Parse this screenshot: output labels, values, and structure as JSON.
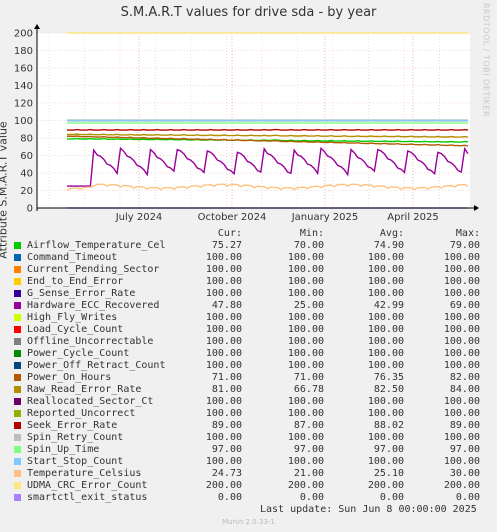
{
  "title": "S.M.A.R.T values for drive sda - by year",
  "ylabel": "Attribute S.M.A.R.T value",
  "watermark": "RRDTOOL / TOBI OETIKER",
  "legend_headers": {
    "cur": "Cur:",
    "min": "Min:",
    "avg": "Avg:",
    "max": "Max:"
  },
  "last_update": "Last update:  Sun Jun  8 00:00:00 2025",
  "footer": "Munin 2.0.33-1",
  "chart_data": {
    "type": "line",
    "title": "S.M.A.R.T values for drive sda - by year",
    "ylabel": "Attribute S.M.A.R.T value",
    "xlabel": "",
    "ylim": [
      0,
      200
    ],
    "yticks": [
      0,
      20,
      40,
      60,
      80,
      100,
      120,
      140,
      160,
      180,
      200
    ],
    "xticks": [
      "July 2024",
      "October 2024",
      "January 2025",
      "April 2025"
    ],
    "grid": true,
    "series": [
      {
        "name": "Airflow_Temperature_Cel",
        "color": "#00cc00",
        "cur": "75.27",
        "min": "70.00",
        "avg": "74.90",
        "max": "79.00"
      },
      {
        "name": "Command_Timeout",
        "color": "#0066b3",
        "cur": "100.00",
        "min": "100.00",
        "avg": "100.00",
        "max": "100.00"
      },
      {
        "name": "Current_Pending_Sector",
        "color": "#ff8000",
        "cur": "100.00",
        "min": "100.00",
        "avg": "100.00",
        "max": "100.00"
      },
      {
        "name": "End_to_End_Error",
        "color": "#ffcc00",
        "cur": "100.00",
        "min": "100.00",
        "avg": "100.00",
        "max": "100.00"
      },
      {
        "name": "G_Sense_Error_Rate",
        "color": "#330099",
        "cur": "100.00",
        "min": "100.00",
        "avg": "100.00",
        "max": "100.00"
      },
      {
        "name": "Hardware_ECC_Recovered",
        "color": "#990099",
        "cur": "47.80",
        "min": "25.00",
        "avg": "42.99",
        "max": "69.00"
      },
      {
        "name": "High_Fly_Writes",
        "color": "#ccff00",
        "cur": "100.00",
        "min": "100.00",
        "avg": "100.00",
        "max": "100.00"
      },
      {
        "name": "Load_Cycle_Count",
        "color": "#ff0000",
        "cur": "100.00",
        "min": "100.00",
        "avg": "100.00",
        "max": "100.00"
      },
      {
        "name": "Offline_Uncorrectable",
        "color": "#808080",
        "cur": "100.00",
        "min": "100.00",
        "avg": "100.00",
        "max": "100.00"
      },
      {
        "name": "Power_Cycle_Count",
        "color": "#008f00",
        "cur": "100.00",
        "min": "100.00",
        "avg": "100.00",
        "max": "100.00"
      },
      {
        "name": "Power_Off_Retract_Count",
        "color": "#00487d",
        "cur": "100.00",
        "min": "100.00",
        "avg": "100.00",
        "max": "100.00"
      },
      {
        "name": "Power_On_Hours",
        "color": "#b35a00",
        "cur": "71.00",
        "min": "71.00",
        "avg": "76.35",
        "max": "82.00"
      },
      {
        "name": "Raw_Read_Error_Rate",
        "color": "#b38f00",
        "cur": "81.00",
        "min": "66.78",
        "avg": "82.50",
        "max": "84.00"
      },
      {
        "name": "Reallocated_Sector_Ct",
        "color": "#6b006b",
        "cur": "100.00",
        "min": "100.00",
        "avg": "100.00",
        "max": "100.00"
      },
      {
        "name": "Reported_Uncorrect",
        "color": "#8fb300",
        "cur": "100.00",
        "min": "100.00",
        "avg": "100.00",
        "max": "100.00"
      },
      {
        "name": "Seek_Error_Rate",
        "color": "#b30000",
        "cur": "89.00",
        "min": "87.00",
        "avg": "88.02",
        "max": "89.00"
      },
      {
        "name": "Spin_Retry_Count",
        "color": "#bebebe",
        "cur": "100.00",
        "min": "100.00",
        "avg": "100.00",
        "max": "100.00"
      },
      {
        "name": "Spin_Up_Time",
        "color": "#80ff80",
        "cur": "97.00",
        "min": "97.00",
        "avg": "97.00",
        "max": "97.00"
      },
      {
        "name": "Start_Stop_Count",
        "color": "#80c9ff",
        "cur": "100.00",
        "min": "100.00",
        "avg": "100.00",
        "max": "100.00"
      },
      {
        "name": "Temperature_Celsius",
        "color": "#ffc080",
        "cur": "24.73",
        "min": "21.00",
        "avg": "25.10",
        "max": "30.00"
      },
      {
        "name": "UDMA_CRC_Error_Count",
        "color": "#ffe680",
        "cur": "200.00",
        "min": "200.00",
        "avg": "200.00",
        "max": "200.00"
      },
      {
        "name": "smartctl_exit_status",
        "color": "#aa80ff",
        "cur": "0.00",
        "min": "0.00",
        "avg": "0.00",
        "max": "0.00"
      }
    ]
  }
}
